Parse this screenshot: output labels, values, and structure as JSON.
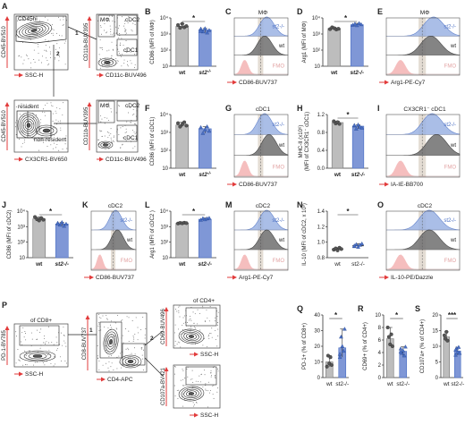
{
  "colors": {
    "wt": "#bdbdbd",
    "ko": "#7f97d6",
    "ko_line": "#4a6fc4",
    "ko_curve": "#9cb3e3",
    "wt_curve": "#6a6a6a",
    "fmo": "#f4b8b8",
    "fmo_text": "#e2a3a3",
    "axis_arrow": "#e23b3b",
    "gate_shade": "#d9cfc2"
  },
  "panels": {
    "A": {
      "letter": "A",
      "p1": {
        "ylabel": "CD45-BV510",
        "xlabel": "SSC-H",
        "gate": "CD45hi",
        "num1": "1",
        "num2": "2"
      },
      "p2": {
        "ylabel": "CD11b-BUV395",
        "xlabel": "CD11c-BUV496",
        "q_tl": "MΦ",
        "q_tr": "cDC2",
        "q_br": "cDC1"
      },
      "p3": {
        "ylabel": "CD45-BV510",
        "xlabel": "CX3CR1-BV650",
        "gate1": "resident",
        "gate2": "non-resident"
      },
      "p4": {
        "ylabel": "CD11b-BUV395",
        "xlabel": "CD11c-BUV496",
        "q_tl": "MΦ",
        "q_tr": "cDC2",
        "q_br": "cDC1"
      }
    },
    "P": {
      "letter": "P",
      "p1": {
        "ylabel": "PD-1-BV785",
        "xlabel": "SSC-H",
        "gate": "of CD8+"
      },
      "p2": {
        "ylabel": "CD8-BUV737",
        "xlabel": "CD4-APC",
        "num1": "1",
        "num2": "2"
      },
      "p3": {
        "ylabel": "CD69-BUV496",
        "xlabel": "SSC-H",
        "title": "of CD4+"
      },
      "p4": {
        "ylabel": "CD107a-BV421",
        "xlabel": "SSC-H"
      }
    }
  },
  "chart_data": [
    {
      "id": "B",
      "type": "bar",
      "letter": "B",
      "categories": [
        "wt",
        "st2-/-"
      ],
      "xlabels": [
        "wt",
        "st2-/-"
      ],
      "ko_superscript": true,
      "ylabel": "CD86 (MFI of MΦ)",
      "yscale": "log",
      "ylim": [
        10,
        10000
      ],
      "yticks": [
        "10",
        "10²",
        "10³",
        "10⁴"
      ],
      "values": [
        3000,
        1800
      ],
      "points": [
        [
          3600,
          2400,
          4300,
          2600,
          3100
        ],
        [
          2100,
          1400,
          2200,
          1200,
          1700,
          1500
        ]
      ],
      "sig": "*"
    },
    {
      "id": "D",
      "type": "bar",
      "letter": "D",
      "categories": [
        "wt",
        "st2-/-"
      ],
      "xlabels": [
        "wt",
        "st2-/-"
      ],
      "ko_superscript": false,
      "ylabel": "Arg1 (MFI of MΦ)",
      "yscale": "log",
      "ylim": [
        10,
        10000
      ],
      "yticks": [
        "10",
        "10²",
        "10³",
        "10⁴"
      ],
      "values": [
        2200,
        3800
      ],
      "points": [
        [
          2000,
          2600,
          2300,
          1900,
          2100
        ],
        [
          3600,
          4200,
          3400,
          4600,
          3900
        ]
      ],
      "sig": "*"
    },
    {
      "id": "F",
      "type": "bar",
      "letter": "F",
      "categories": [
        "wt",
        "st2-/-"
      ],
      "xlabels": [
        "wt",
        "st2-/-"
      ],
      "ko_superscript": true,
      "ylabel": "CD86 (MFI of cDC1)",
      "yscale": "log",
      "ylim": [
        10,
        10000
      ],
      "yticks": [
        "10",
        "10²",
        "10³",
        "10⁴"
      ],
      "values": [
        2600,
        1600
      ],
      "points": [
        [
          3300,
          2100,
          2800,
          3700,
          2400
        ],
        [
          1900,
          900,
          1400,
          2100,
          1200
        ]
      ],
      "sig": ""
    },
    {
      "id": "H",
      "type": "bar",
      "letter": "H",
      "categories": [
        "wt",
        "st2-/-"
      ],
      "xlabels": [
        "wt",
        "st2-/-"
      ],
      "ko_superscript": false,
      "ylabel": "MHC-II (x10⁶)",
      "ylabel2": "(MFI of CX3CR1⁻ cDC1)",
      "yscale": "linear",
      "ylim": [
        0.0,
        1.2
      ],
      "yticks": [
        "0.0",
        "0.4",
        "0.8",
        "1.2"
      ],
      "values": [
        1.02,
        0.94
      ],
      "points": [
        [
          1.05,
          1.0,
          1.03,
          0.99
        ],
        [
          0.95,
          0.88,
          0.97,
          0.92,
          0.9,
          0.96
        ]
      ],
      "sig": "*"
    },
    {
      "id": "J",
      "type": "bar",
      "letter": "J",
      "categories": [
        "wt",
        "st2-/-"
      ],
      "xlabels": [
        "wt",
        "st2-/-"
      ],
      "ko_superscript": false,
      "ylabel": "CD86 (MFI of cDC2)",
      "yscale": "log",
      "ylim": [
        10,
        10000
      ],
      "yticks": [
        "10",
        "10²",
        "10³",
        "10⁴"
      ],
      "values": [
        3200,
        1500
      ],
      "points": [
        [
          4200,
          3000,
          2500,
          3600,
          2800
        ],
        [
          1700,
          1300,
          1900,
          1100,
          1500,
          1600
        ]
      ],
      "sig": "*"
    },
    {
      "id": "L",
      "type": "bar",
      "letter": "L",
      "categories": [
        "wt",
        "st2-/-"
      ],
      "xlabels": [
        "wt",
        "st2-/-"
      ],
      "ko_superscript": false,
      "ylabel": "Arg1 (MFI of cDC2 )",
      "yscale": "log",
      "ylim": [
        10,
        10000
      ],
      "yticks": [
        "10",
        "10²",
        "10³",
        "10⁴"
      ],
      "values": [
        1700,
        3000
      ],
      "points": [
        [
          1600,
          1750,
          1650,
          1800,
          1700
        ],
        [
          2700,
          3400,
          2900,
          3300,
          3600
        ]
      ],
      "sig": "*"
    },
    {
      "id": "N",
      "type": "dot",
      "letter": "N",
      "categories": [
        "wt",
        "st2-/-"
      ],
      "xlabels": [
        "wt",
        "st2-/-"
      ],
      "ko_superscript": false,
      "ylabel": "IL-10 (MFI of cDC2, x 10³)",
      "yscale": "linear",
      "ylim": [
        0.8,
        1.5
      ],
      "yticks": [
        "0.8",
        "1.0",
        "1.2",
        "1.4"
      ],
      "values": [
        0.93,
        0.98
      ],
      "points": [
        [
          0.92,
          0.94,
          0.91,
          0.95,
          0.93
        ],
        [
          0.97,
          1.0,
          0.96,
          0.99,
          1.01,
          0.98
        ]
      ],
      "sig": "*"
    },
    {
      "id": "Q",
      "type": "bar",
      "letter": "Q",
      "categories": [
        "wt",
        "st2-/-"
      ],
      "xlabels": [
        "wt",
        "st2-/-"
      ],
      "ko_superscript": false,
      "ylabel": "PD-1+ (% of CD8+)",
      "yscale": "linear",
      "ylim": [
        0,
        40
      ],
      "yticks": [
        "0",
        "10",
        "20",
        "30",
        "40"
      ],
      "values": [
        10,
        19
      ],
      "points": [
        [
          7,
          14,
          9,
          13,
          8
        ],
        [
          15,
          26,
          20,
          17,
          31,
          13
        ]
      ],
      "sig": "*"
    },
    {
      "id": "R",
      "type": "bar",
      "letter": "R",
      "categories": [
        "wt",
        "st2-/-"
      ],
      "xlabels": [
        "wt",
        "st2-/-"
      ],
      "ko_superscript": false,
      "ylabel": "CD69+ (% of CD4+)",
      "yscale": "linear",
      "ylim": [
        0,
        10
      ],
      "yticks": [
        "0",
        "2",
        "4",
        "6",
        "8",
        "10"
      ],
      "values": [
        6.2,
        4.2
      ],
      "points": [
        [
          8.0,
          6.5,
          5.3,
          6.9,
          5.0
        ],
        [
          4.6,
          3.9,
          4.3,
          3.5,
          4.9,
          4.1
        ]
      ],
      "sig": "*"
    },
    {
      "id": "S",
      "type": "bar",
      "letter": "S",
      "categories": [
        "wt",
        "st2-/-"
      ],
      "xlabels": [
        "wt",
        "st2-/-"
      ],
      "ko_superscript": false,
      "ylabel": "CD107a+ (% of CD4+)",
      "yscale": "linear",
      "ylim": [
        0,
        20
      ],
      "yticks": [
        "0",
        "5",
        "10",
        "15",
        "20"
      ],
      "values": [
        13,
        8.5
      ],
      "points": [
        [
          13.5,
          12.4,
          14.6,
          11.8
        ],
        [
          7.2,
          9.3,
          8.1,
          9.7,
          7.8,
          8.8
        ]
      ],
      "sig": "***"
    },
    {
      "id": "C",
      "type": "histogram",
      "letter": "C",
      "title": "MΦ",
      "xlabel": "CD86-BUV737",
      "labels": [
        "st2-/-",
        "wt",
        "FMO"
      ],
      "shift": [
        0.62,
        0.58
      ]
    },
    {
      "id": "E",
      "type": "histogram",
      "letter": "E",
      "title": "MΦ",
      "xlabel": "Arg1-PE-Cy7",
      "labels": [
        "st2-/-",
        "wt",
        "FMO"
      ],
      "shift": [
        0.66,
        0.62
      ]
    },
    {
      "id": "G",
      "type": "histogram",
      "letter": "G",
      "title": "cDC1",
      "xlabel": "CD86-BUV737",
      "labels": [
        "st2-/-",
        "wt",
        "FMO"
      ],
      "shift": [
        0.58,
        0.66
      ]
    },
    {
      "id": "I",
      "type": "histogram",
      "letter": "I",
      "title": "CX3CR1⁻ cDC1",
      "xlabel": "IA-IE-BB700",
      "labels": [
        "st2-/-",
        "wt",
        "FMO"
      ],
      "shift": [
        0.64,
        0.7
      ]
    },
    {
      "id": "K",
      "type": "histogram",
      "letter": "K",
      "title": "cDC2",
      "xlabel": "CD86-BUV737",
      "labels": [
        "st2-/-",
        "wt",
        "FMO"
      ],
      "shift": [
        0.56,
        0.6
      ]
    },
    {
      "id": "M",
      "type": "histogram",
      "letter": "M",
      "title": "cDC2",
      "xlabel": "Arg1-PE-Cy7",
      "labels": [
        "st2-/-",
        "wt",
        "FMO"
      ],
      "shift": [
        0.62,
        0.62
      ]
    },
    {
      "id": "O",
      "type": "histogram",
      "letter": "O",
      "title": "cDC2",
      "xlabel": "IL-10-PE/Dazzle",
      "labels": [
        "st2-/-",
        "wt",
        "FMO"
      ],
      "shift": [
        0.6,
        0.6
      ]
    }
  ]
}
